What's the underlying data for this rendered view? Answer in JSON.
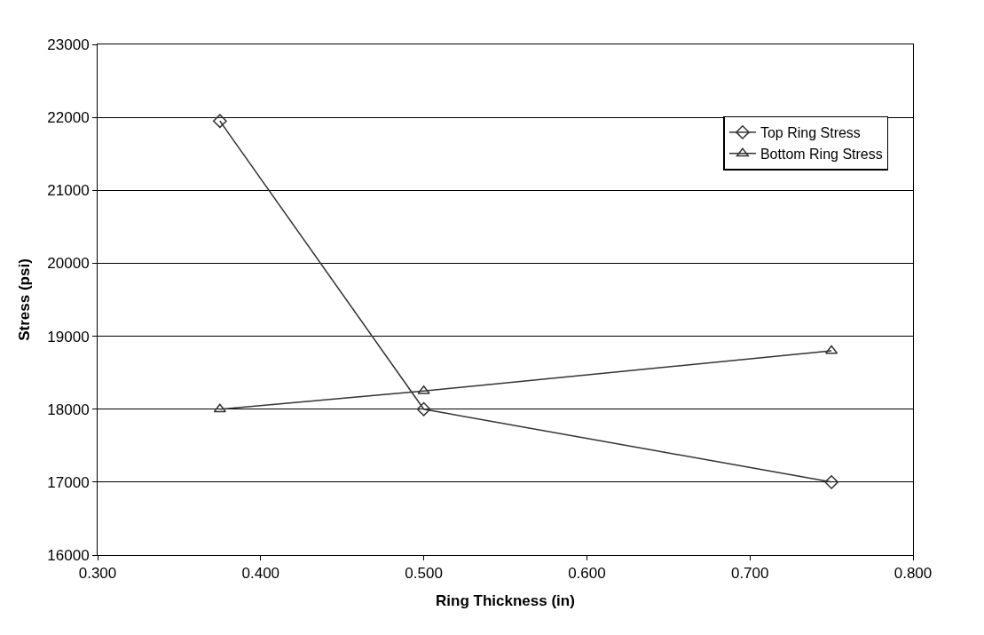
{
  "chart_data": {
    "type": "line",
    "xlabel": "Ring Thickness (in)",
    "ylabel": "Stress (psi)",
    "x": [
      0.375,
      0.5,
      0.75
    ],
    "series": [
      {
        "name": "Top Ring Stress",
        "color": "#333333",
        "marker": "diamond",
        "values": [
          21950,
          18000,
          17000
        ]
      },
      {
        "name": "Bottom Ring Stress",
        "color": "#333333",
        "marker": "triangle",
        "values": [
          18000,
          18250,
          18800
        ]
      }
    ],
    "xlim": [
      0.3,
      0.8
    ],
    "xticks": [
      {
        "value": 0.3,
        "label": "0.300"
      },
      {
        "value": 0.4,
        "label": "0.400"
      },
      {
        "value": 0.5,
        "label": "0.500"
      },
      {
        "value": 0.6,
        "label": "0.600"
      },
      {
        "value": 0.7,
        "label": "0.700"
      },
      {
        "value": 0.8,
        "label": "0.800"
      }
    ],
    "ylim": [
      16000,
      23000
    ],
    "yticks": [
      16000,
      17000,
      18000,
      19000,
      20000,
      21000,
      22000,
      23000
    ],
    "grid": "y",
    "legend": "top right",
    "line_style": "solid"
  }
}
